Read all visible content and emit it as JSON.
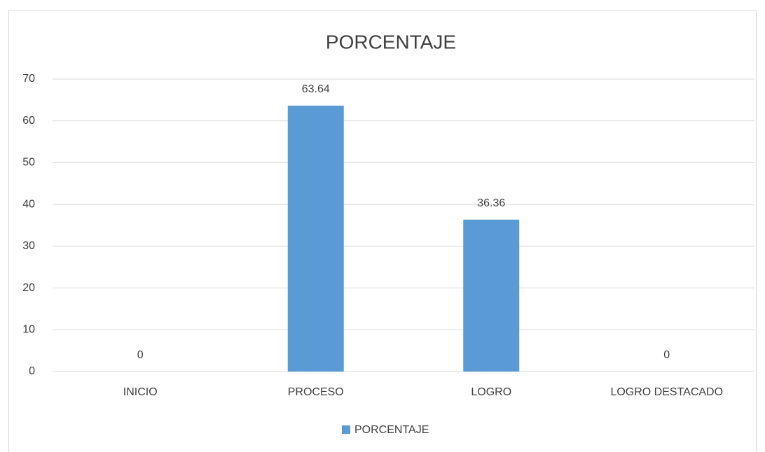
{
  "chart_data": {
    "type": "bar",
    "title": "PORCENTAJE",
    "categories": [
      "INICIO",
      "PROCESO",
      "LOGRO",
      "LOGRO DESTACADO"
    ],
    "series": [
      {
        "name": "PORCENTAJE",
        "color": "#5b9bd5",
        "values": [
          0,
          63.64,
          36.36,
          0
        ]
      }
    ],
    "ylim": [
      0,
      70
    ],
    "yticks": [
      0,
      10,
      20,
      30,
      40,
      50,
      60,
      70
    ],
    "grid": true,
    "legend": "bottom"
  }
}
